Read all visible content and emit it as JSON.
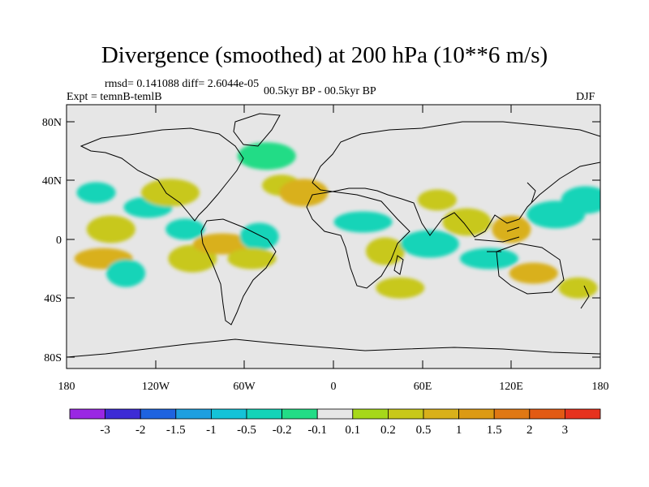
{
  "title": "Divergence (smoothed) at 200 hPa (10**6 m/s)",
  "stats": "rmsd= 0.141088 diff= 2.6044e-05",
  "expt": "Expt = temnB-temlB",
  "period": "00.5kyr BP - 00.5kyr BP",
  "season": "DJF",
  "lat_labels": [
    "80N",
    "40N",
    "0",
    "40S",
    "80S"
  ],
  "lon_labels": [
    "180",
    "120W",
    "60W",
    "0",
    "60E",
    "120E",
    "180"
  ],
  "colorbar": {
    "colors": [
      "#9a27e3",
      "#3d2bd6",
      "#1e63e0",
      "#1e9fe0",
      "#14c3d8",
      "#14d4b8",
      "#23dc86",
      "#e6e6e6",
      "#a6d81a",
      "#c8c81a",
      "#d9b01a",
      "#dc9a14",
      "#e07814",
      "#e25a14",
      "#e6321e"
    ],
    "labels": [
      "-3",
      "-2",
      "-1.5",
      "-1",
      "-0.5",
      "-0.2",
      "-0.1",
      "0.1",
      "0.2",
      "0.5",
      "1",
      "1.5",
      "2",
      "3"
    ]
  },
  "chart_data": {
    "type": "heatmap",
    "title": "Divergence (smoothed) at 200 hPa (10**6 m/s)",
    "units": "10**6 m/s",
    "levels": [
      -3,
      -2,
      -1.5,
      -1,
      -0.5,
      -0.2,
      -0.1,
      0.1,
      0.2,
      0.5,
      1,
      1.5,
      2,
      3
    ],
    "xlim": [
      -180,
      180
    ],
    "ylim": [
      -90,
      90
    ],
    "cells": [
      {
        "lon": -160,
        "lat": 30,
        "value": -0.3
      },
      {
        "lon": -150,
        "lat": 5,
        "value": 0.3
      },
      {
        "lon": -155,
        "lat": -15,
        "value": 0.8
      },
      {
        "lon": -140,
        "lat": -25,
        "value": -0.4
      },
      {
        "lon": -125,
        "lat": 20,
        "value": -0.3
      },
      {
        "lon": -110,
        "lat": 30,
        "value": 0.3
      },
      {
        "lon": -100,
        "lat": 5,
        "value": -0.3
      },
      {
        "lon": -95,
        "lat": -15,
        "value": 0.4
      },
      {
        "lon": -75,
        "lat": -5,
        "value": 0.5
      },
      {
        "lon": -50,
        "lat": 0,
        "value": -0.4
      },
      {
        "lon": -55,
        "lat": -15,
        "value": 0.3
      },
      {
        "lon": -45,
        "lat": 55,
        "value": -0.2
      },
      {
        "lon": -35,
        "lat": 35,
        "value": 0.3
      },
      {
        "lon": -20,
        "lat": 30,
        "value": 0.5
      },
      {
        "lon": 20,
        "lat": 10,
        "value": -0.3
      },
      {
        "lon": 35,
        "lat": -10,
        "value": 0.3
      },
      {
        "lon": 45,
        "lat": -35,
        "value": 0.3
      },
      {
        "lon": 65,
        "lat": -5,
        "value": -0.3
      },
      {
        "lon": 70,
        "lat": 25,
        "value": 0.4
      },
      {
        "lon": 90,
        "lat": 10,
        "value": 0.4
      },
      {
        "lon": 105,
        "lat": -15,
        "value": -0.3
      },
      {
        "lon": 120,
        "lat": 5,
        "value": 0.5
      },
      {
        "lon": 135,
        "lat": -25,
        "value": 0.6
      },
      {
        "lon": 150,
        "lat": 15,
        "value": -0.3
      },
      {
        "lon": 165,
        "lat": -35,
        "value": 0.3
      },
      {
        "lon": 170,
        "lat": 25,
        "value": -0.3
      }
    ]
  }
}
